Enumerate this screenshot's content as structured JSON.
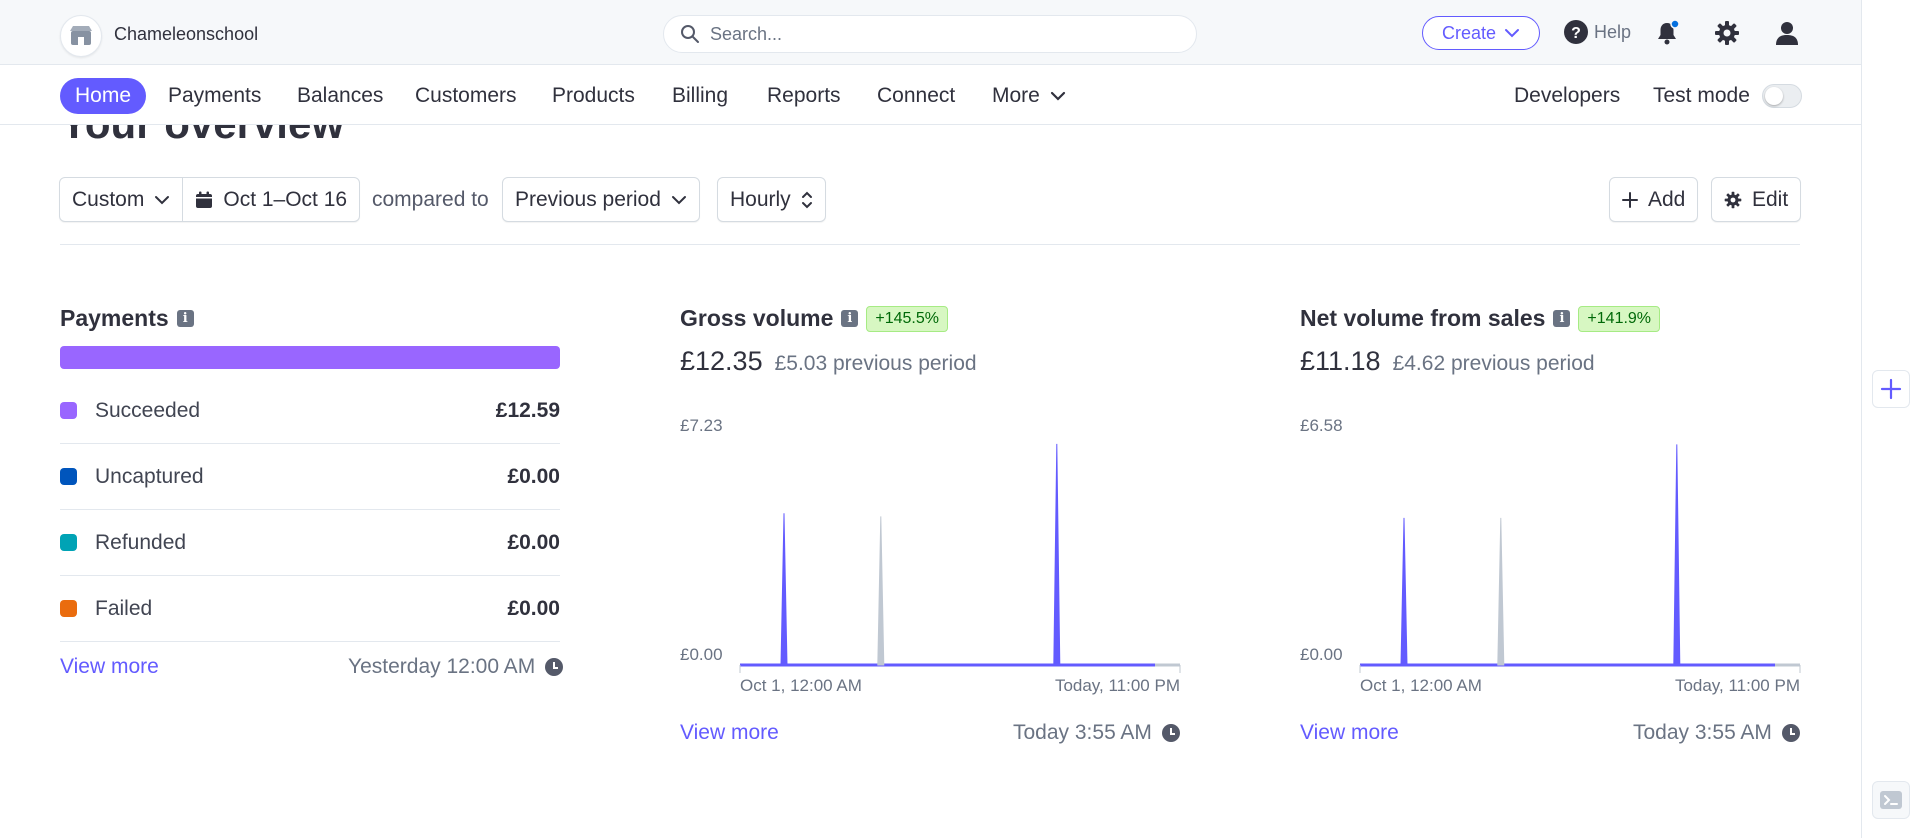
{
  "header": {
    "account_name": "Chameleonschool",
    "search_placeholder": "Search...",
    "create_label": "Create",
    "help_label": "Help"
  },
  "nav": {
    "items": [
      "Home",
      "Payments",
      "Balances",
      "Customers",
      "Products",
      "Billing",
      "Reports",
      "Connect",
      "More"
    ],
    "active": "Home",
    "developers_label": "Developers",
    "test_mode_label": "Test mode",
    "test_mode_on": false
  },
  "page": {
    "title": "Your overview"
  },
  "filters": {
    "range_type": "Custom",
    "date_range": "Oct 1–Oct 16",
    "compared_to_label": "compared to",
    "comparison": "Previous period",
    "interval": "Hourly",
    "add_label": "Add",
    "edit_label": "Edit"
  },
  "payments_card": {
    "title": "Payments",
    "rows": [
      {
        "label": "Succeeded",
        "amount": "£12.59",
        "color": "#9966ff"
      },
      {
        "label": "Uncaptured",
        "amount": "£0.00",
        "color": "#0055bc"
      },
      {
        "label": "Refunded",
        "amount": "£0.00",
        "color": "#00a3b5"
      },
      {
        "label": "Failed",
        "amount": "£0.00",
        "color": "#ea6c0e"
      }
    ],
    "view_more": "View more",
    "updated": "Yesterday 12:00 AM"
  },
  "gross_card": {
    "title": "Gross volume",
    "change": "+145.5%",
    "amount": "£12.35",
    "previous": "£5.03 previous period",
    "view_more": "View more",
    "updated": "Today 3:55 AM"
  },
  "net_card": {
    "title": "Net volume from sales",
    "change": "+141.9%",
    "amount": "£11.18",
    "previous": "£4.62 previous period",
    "view_more": "View more",
    "updated": "Today 3:55 AM"
  },
  "chart_data": [
    {
      "type": "line",
      "title": "Gross volume",
      "y_top_label": "£7.23",
      "y_bottom_label": "£0.00",
      "x_start_label": "Oct 1, 12:00 AM",
      "x_end_label": "Today, 11:00 PM",
      "ylim": [
        0,
        7.23
      ],
      "series": [
        {
          "color": "#635bff",
          "points": [
            {
              "x": 0.1,
              "y": 4.77
            },
            {
              "x": 0.72,
              "y": 6.95
            }
          ]
        },
        {
          "color": "#c0c8d2",
          "points": [
            {
              "x": 0.32,
              "y": 4.67
            }
          ]
        }
      ],
      "grid": false
    },
    {
      "type": "line",
      "title": "Net volume from sales",
      "y_top_label": "£6.58",
      "y_bottom_label": "£0.00",
      "x_start_label": "Oct 1, 12:00 AM",
      "x_end_label": "Today, 11:00 PM",
      "ylim": [
        0,
        6.58
      ],
      "series": [
        {
          "color": "#635bff",
          "points": [
            {
              "x": 0.1,
              "y": 4.21
            },
            {
              "x": 0.72,
              "y": 6.31
            }
          ]
        },
        {
          "color": "#c0c8d2",
          "points": [
            {
              "x": 0.32,
              "y": 4.21
            }
          ]
        }
      ],
      "grid": false
    }
  ]
}
